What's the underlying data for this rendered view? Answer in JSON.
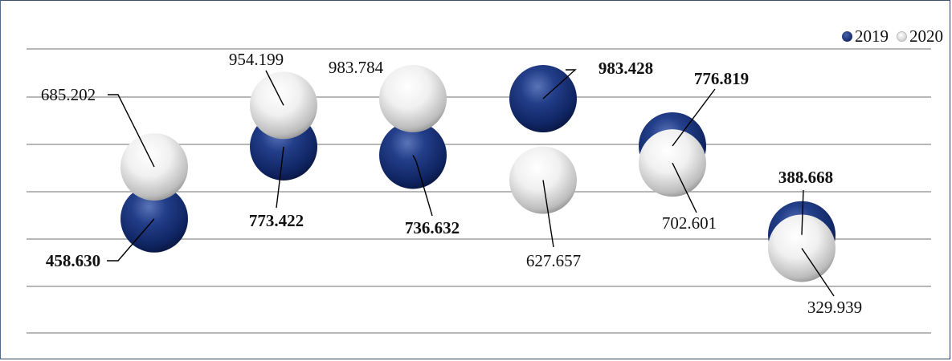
{
  "chart_data": {
    "type": "scatter",
    "title": "",
    "xlabel": "",
    "ylabel": "",
    "grid": true,
    "legend_placement": "top-right",
    "categories": [
      "1",
      "2",
      "3",
      "4",
      "5",
      "6"
    ],
    "series": [
      {
        "name": "2019",
        "color": "#142a6e",
        "values": [
          458.63,
          773.422,
          736.632,
          983.428,
          776.819,
          388.668
        ],
        "bold_labels": true
      },
      {
        "name": "2020",
        "color": "#e6e6e6",
        "values": [
          685.202,
          954.199,
          983.784,
          627.657,
          702.601,
          329.939
        ],
        "bold_labels": false
      }
    ]
  }
}
